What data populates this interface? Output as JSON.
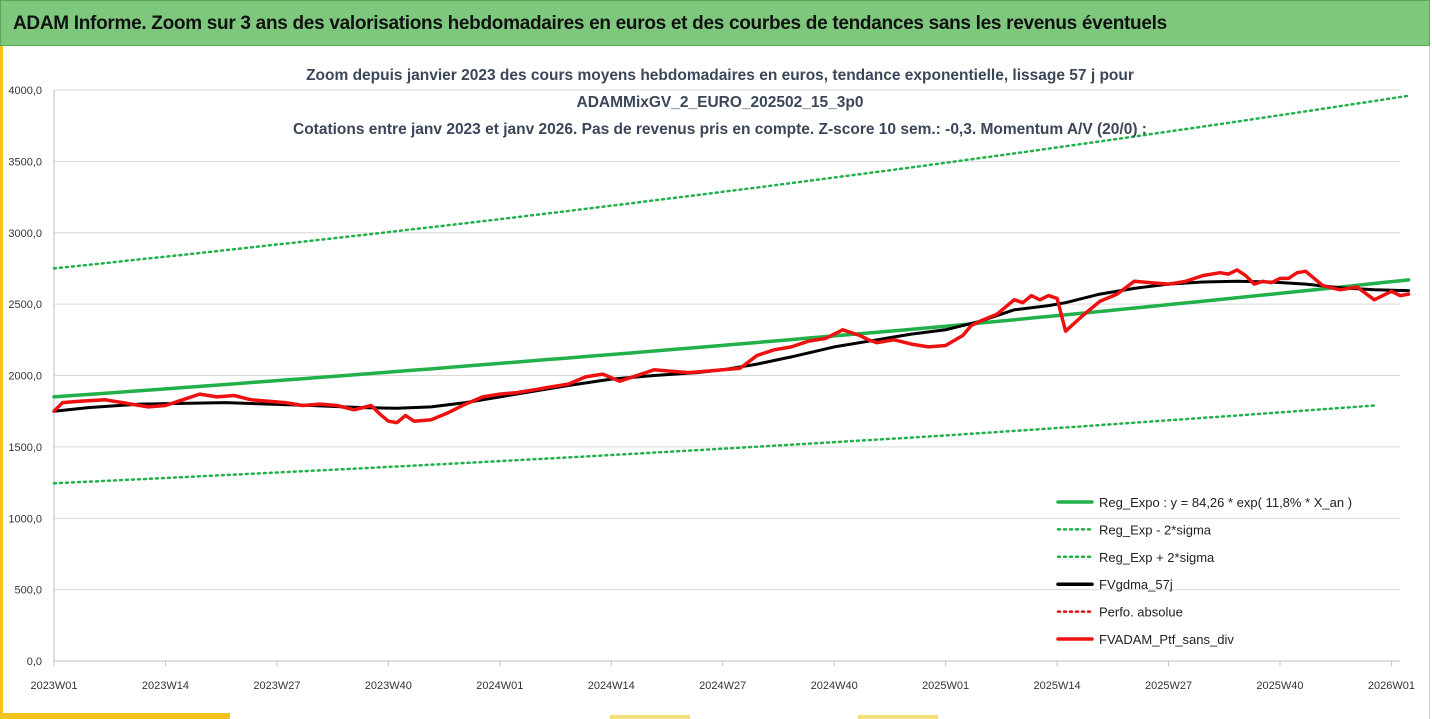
{
  "header": {
    "title": "ADAM Informe. Zoom sur 3 ans des valorisations hebdomadaires en euros et des courbes de tendances sans les revenus éventuels"
  },
  "colors": {
    "header_bg": "#7ec87e",
    "frame_accent": "#f3c21c",
    "trend": "#22b04a",
    "band": "#22b04a",
    "smoothed": "#000000",
    "perf_absolue": "#dd1111",
    "portfolio": "#ee1111"
  },
  "chart_data": {
    "type": "line",
    "title_lines": [
      "Zoom depuis janvier 2023 des cours moyens hebdomadaires  en euros, tendance exponentielle, lissage 57 j pour",
      "ADAMMixGV_2_EURO_202502_15_3p0",
      "Cotations entre janv 2023 et janv 2026. Pas de revenus pris en compte. Z-score 10 sem.: -0,3. Momentum A/V (20/0) :"
    ],
    "ylim": [
      0,
      4000
    ],
    "y_ticks": [
      "0,0",
      "500,0",
      "1000,0",
      "1500,0",
      "2000,0",
      "2500,0",
      "3000,0",
      "3500,0",
      "4000,0"
    ],
    "y_tick_values": [
      0,
      500,
      1000,
      1500,
      2000,
      2500,
      3000,
      3500,
      4000
    ],
    "x_range_weeks": [
      0,
      157
    ],
    "x_ticks": [
      "2023W01",
      "2023W14",
      "2023W27",
      "2023W40",
      "2024W01",
      "2024W14",
      "2024W27",
      "2024W40",
      "2025W01",
      "2025W14",
      "2025W27",
      "2025W40",
      "2026W01"
    ],
    "x_tick_weeks": [
      0,
      13,
      26,
      39,
      52,
      65,
      78,
      91,
      104,
      117,
      130,
      143,
      156
    ],
    "legend": [
      {
        "label": "Reg_Expo : y = 84,26 * exp( 11,8% *  X_an )",
        "style": "solid",
        "color": "#22b04a"
      },
      {
        "label": "Reg_Exp - 2*sigma",
        "style": "dotted",
        "color": "#22b04a"
      },
      {
        "label": "Reg_Exp + 2*sigma",
        "style": "dotted",
        "color": "#22b04a"
      },
      {
        "label": "FVgdma_57j",
        "style": "solid",
        "color": "#000000"
      },
      {
        "label": "Perfo. absolue",
        "style": "dotted",
        "color": "#dd1111"
      },
      {
        "label": "FVADAM_Ptf_sans_div",
        "style": "solid",
        "color": "#ee1111"
      }
    ],
    "series": [
      {
        "name": "Reg_Expo",
        "x": [
          0,
          52,
          104,
          158
        ],
        "values": [
          1850,
          2085,
          2345,
          2670
        ]
      },
      {
        "name": "Reg_Exp - 2*sigma",
        "x": [
          0,
          52,
          104,
          154
        ],
        "values": [
          1245,
          1400,
          1580,
          1790
        ]
      },
      {
        "name": "Reg_Exp + 2*sigma",
        "x": [
          0,
          52,
          104,
          158
        ],
        "values": [
          2750,
          3095,
          3490,
          3960
        ]
      },
      {
        "name": "FVgdma_57j",
        "x": [
          0,
          4,
          10,
          20,
          30,
          36,
          40,
          44,
          48,
          52,
          56,
          60,
          65,
          70,
          75,
          78,
          82,
          86,
          91,
          96,
          100,
          104,
          108,
          112,
          116,
          118,
          122,
          126,
          130,
          134,
          138,
          142,
          146,
          150,
          154,
          158
        ],
        "values": [
          1750,
          1775,
          1800,
          1810,
          1790,
          1775,
          1770,
          1780,
          1810,
          1850,
          1890,
          1930,
          1975,
          2000,
          2020,
          2040,
          2080,
          2130,
          2200,
          2250,
          2290,
          2320,
          2380,
          2460,
          2490,
          2510,
          2570,
          2610,
          2640,
          2655,
          2660,
          2655,
          2640,
          2615,
          2600,
          2595
        ]
      },
      {
        "name": "FVADAM_Ptf_sans_div",
        "x": [
          0,
          1,
          3,
          6,
          9,
          11,
          13,
          15,
          17,
          19,
          21,
          23,
          25,
          27,
          29,
          31,
          33,
          35,
          37,
          38,
          39,
          40,
          41,
          42,
          44,
          46,
          48,
          50,
          52,
          54,
          56,
          58,
          60,
          62,
          64,
          66,
          68,
          70,
          72,
          74,
          76,
          78,
          80,
          82,
          84,
          86,
          88,
          90,
          92,
          94,
          95,
          96,
          97,
          98,
          100,
          102,
          104,
          106,
          107,
          108,
          110,
          111,
          112,
          113,
          114,
          115,
          116,
          117,
          118,
          120,
          122,
          124,
          126,
          128,
          130,
          132,
          134,
          136,
          137,
          138,
          139,
          140,
          141,
          142,
          143,
          144,
          145,
          146,
          148,
          150,
          152,
          154,
          156,
          157,
          158
        ],
        "values": [
          1750,
          1810,
          1820,
          1830,
          1800,
          1780,
          1790,
          1830,
          1870,
          1850,
          1860,
          1830,
          1820,
          1810,
          1790,
          1800,
          1790,
          1760,
          1790,
          1730,
          1680,
          1670,
          1720,
          1680,
          1690,
          1740,
          1800,
          1850,
          1870,
          1880,
          1900,
          1920,
          1940,
          1990,
          2010,
          1960,
          2000,
          2040,
          2030,
          2020,
          2030,
          2040,
          2050,
          2140,
          2180,
          2200,
          2240,
          2260,
          2320,
          2280,
          2250,
          2230,
          2240,
          2250,
          2220,
          2200,
          2210,
          2280,
          2350,
          2380,
          2430,
          2480,
          2530,
          2510,
          2560,
          2530,
          2560,
          2540,
          2310,
          2420,
          2520,
          2570,
          2660,
          2650,
          2640,
          2660,
          2700,
          2720,
          2710,
          2740,
          2700,
          2640,
          2660,
          2650,
          2680,
          2680,
          2720,
          2730,
          2630,
          2600,
          2620,
          2530,
          2590,
          2560,
          2570
        ]
      }
    ]
  }
}
